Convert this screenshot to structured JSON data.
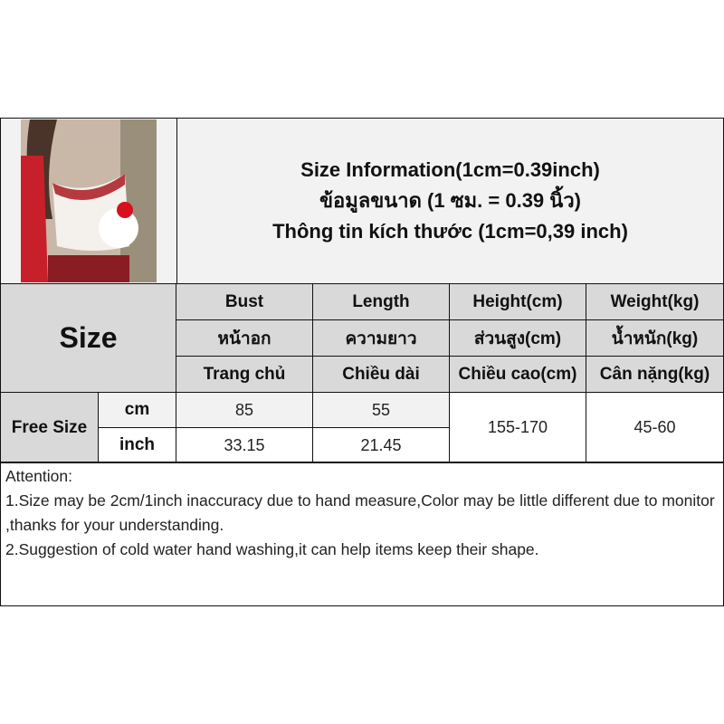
{
  "title": {
    "line1": "Size Information(1cm=0.39inch)",
    "line2": "ข้อมูลขนาด (1 ซม. = 0.39 นิ้ว)",
    "line3": "Thông tin kích thước (1cm=0,39 inch)"
  },
  "size_label": "Size",
  "columns": [
    {
      "en": "Bust",
      "th": "หน้าอก",
      "vi": "Trang chủ"
    },
    {
      "en": "Length",
      "th": "ความยาว",
      "vi": "Chiều dài"
    },
    {
      "en": "Height(cm)",
      "th": "ส่วนสูง(cm)",
      "vi": "Chiều cao(cm)"
    },
    {
      "en": "Weight(kg)",
      "th": "น้ำหนัก(kg)",
      "vi": "Cân nặng(kg)"
    }
  ],
  "rows": {
    "size_name": "Free Size",
    "cm": {
      "unit": "cm",
      "bust": "85",
      "length": "55"
    },
    "inch": {
      "unit": "inch",
      "bust": "33.15",
      "length": "21.45"
    },
    "height": "155-170",
    "weight": "45-60"
  },
  "attention": {
    "heading": "Attention:",
    "line1": "1.Size may be 2cm/1inch inaccuracy due to hand measure,Color may be little different due to monitor ,thanks for your understanding.",
    "line2": "2.Suggestion of cold water hand washing,it can help items keep their shape."
  },
  "colors": {
    "header_gray": "#d9d9d9",
    "light_gray": "#f2f2f2",
    "border": "#111111"
  }
}
